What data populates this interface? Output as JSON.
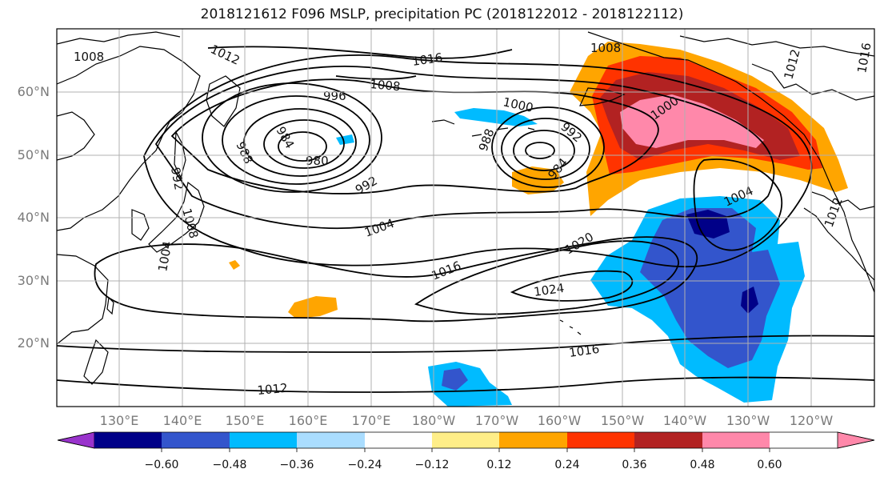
{
  "title": "2018121612 F096 MSLP, precipitation PC (2018122012 - 2018122112)",
  "map": {
    "lat_ticks": [
      "20°N",
      "30°N",
      "40°N",
      "50°N",
      "60°N"
    ],
    "lon_ticks": [
      "130°E",
      "140°E",
      "150°E",
      "160°E",
      "170°E",
      "180°W",
      "170°W",
      "160°W",
      "150°W",
      "140°W",
      "130°W",
      "120°W"
    ],
    "isobar_labels": [
      "1008",
      "1012",
      "1016",
      "1008",
      "996",
      "984",
      "988",
      "980",
      "992",
      "1000",
      "988",
      "992",
      "984",
      "1008",
      "1000",
      "1012",
      "1016",
      "1004",
      "992",
      "1004",
      "1016",
      "1020",
      "1024",
      "1016",
      "1012",
      "1008",
      "1004",
      "1012"
    ],
    "colors": {
      "land": "#000000",
      "isobar": "#000000",
      "grid": "#b0b0b0"
    }
  },
  "colorbar": {
    "colors": [
      "#9933cc",
      "#000088",
      "#3355cc",
      "#00bbff",
      "#aaddff",
      "#ffffff",
      "#ffee88",
      "#ffa500",
      "#ff3300",
      "#b22222",
      "#ff88aa"
    ],
    "tick_labels": [
      "−0.60",
      "−0.48",
      "−0.36",
      "−0.24",
      "−0.12",
      "0.12",
      "0.24",
      "0.36",
      "0.48",
      "0.60"
    ]
  }
}
